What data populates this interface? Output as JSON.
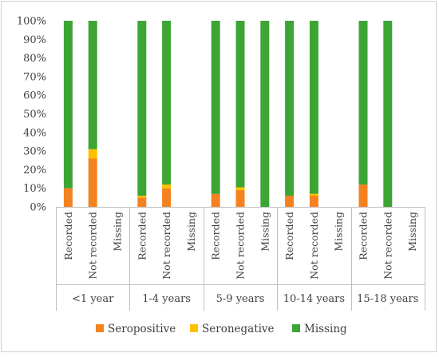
{
  "chart_data": {
    "type": "bar",
    "stacked": true,
    "percent_stacked": true,
    "groups": [
      "<1 year",
      "1-4 years",
      "5-9 years",
      "10-14 years",
      "15-18 years"
    ],
    "categories": [
      "Recorded",
      "Not recorded",
      "Missing"
    ],
    "ylim": [
      0,
      100
    ],
    "yticks": [
      "0%",
      "10%",
      "20%",
      "30%",
      "40%",
      "50%",
      "60%",
      "70%",
      "80%",
      "90%",
      "100%"
    ],
    "grid": false,
    "legend_position": "bottom",
    "series": [
      {
        "name": "Seropositive",
        "color": "#f58220",
        "values": [
          [
            10,
            26,
            null
          ],
          [
            5,
            10,
            null
          ],
          [
            7,
            9,
            0
          ],
          [
            6,
            6,
            null
          ],
          [
            12,
            0,
            null
          ]
        ]
      },
      {
        "name": "Seronegative",
        "color": "#ffc000",
        "values": [
          [
            0,
            5,
            null
          ],
          [
            1,
            2,
            null
          ],
          [
            0,
            1.5,
            0
          ],
          [
            0,
            1,
            null
          ],
          [
            0,
            0,
            null
          ]
        ]
      },
      {
        "name": "Missing",
        "color": "#3ca534",
        "values": [
          [
            90,
            69,
            null
          ],
          [
            94,
            88,
            null
          ],
          [
            93,
            89.5,
            100
          ],
          [
            94,
            93,
            null
          ],
          [
            88,
            100,
            null
          ]
        ]
      }
    ]
  }
}
